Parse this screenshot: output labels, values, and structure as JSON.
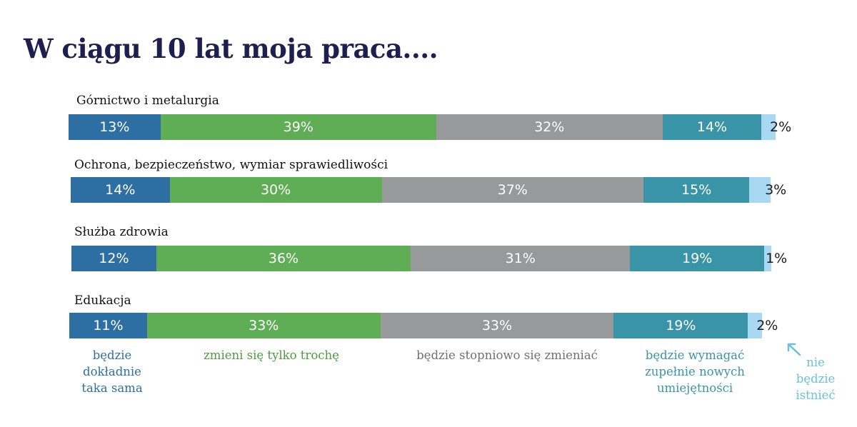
{
  "title": "W ciągu 10 lat moja praca....",
  "colors": {
    "same": "#2e6fa3",
    "little": "#5fae55",
    "gradual": "#97999b",
    "new_skills": "#3a94a8",
    "not_exist": "#a9d8f2",
    "title": "#1e1f4e"
  },
  "legend": {
    "same": "będzie dokładnie taka sama",
    "little": "zmieni się tylko trochę",
    "gradual": "będzie stopniowo się zmieniać",
    "new_skills": "będzie wymagać zupełnie nowych umiejętności",
    "not_exist": "nie będzie istnieć"
  },
  "chart_data": {
    "type": "bar",
    "orientation": "horizontal",
    "stacked": true,
    "categories": [
      "Górnictwo i metalurgia",
      "Ochrona, bezpieczeństwo, wymiar sprawiedliwości",
      "Służba zdrowia",
      "Edukacja"
    ],
    "series": [
      {
        "name": "będzie dokładnie taka sama",
        "values": [
          13,
          14,
          12,
          11
        ],
        "labels": [
          "13%",
          "14%",
          "12%",
          "11%"
        ],
        "color": "#2e6fa3"
      },
      {
        "name": "zmieni się tylko trochę",
        "values": [
          39,
          30,
          36,
          33
        ],
        "labels": [
          "39%",
          "30%",
          "36%",
          "33%"
        ],
        "color": "#5fae55"
      },
      {
        "name": "będzie stopniowo się zmieniać",
        "values": [
          32,
          37,
          31,
          33
        ],
        "labels": [
          "32%",
          "37%",
          "31%",
          "33%"
        ],
        "color": "#97999b"
      },
      {
        "name": "będzie wymagać zupełnie nowych umiejętności",
        "values": [
          14,
          15,
          19,
          19
        ],
        "labels": [
          "14%",
          "15%",
          "19%",
          "19%"
        ],
        "color": "#3a94a8"
      },
      {
        "name": "nie będzie istnieć",
        "values": [
          2,
          3,
          1,
          2
        ],
        "labels": [
          "2%",
          "3%",
          "1%",
          "2%"
        ],
        "color": "#a9d8f2"
      }
    ]
  }
}
